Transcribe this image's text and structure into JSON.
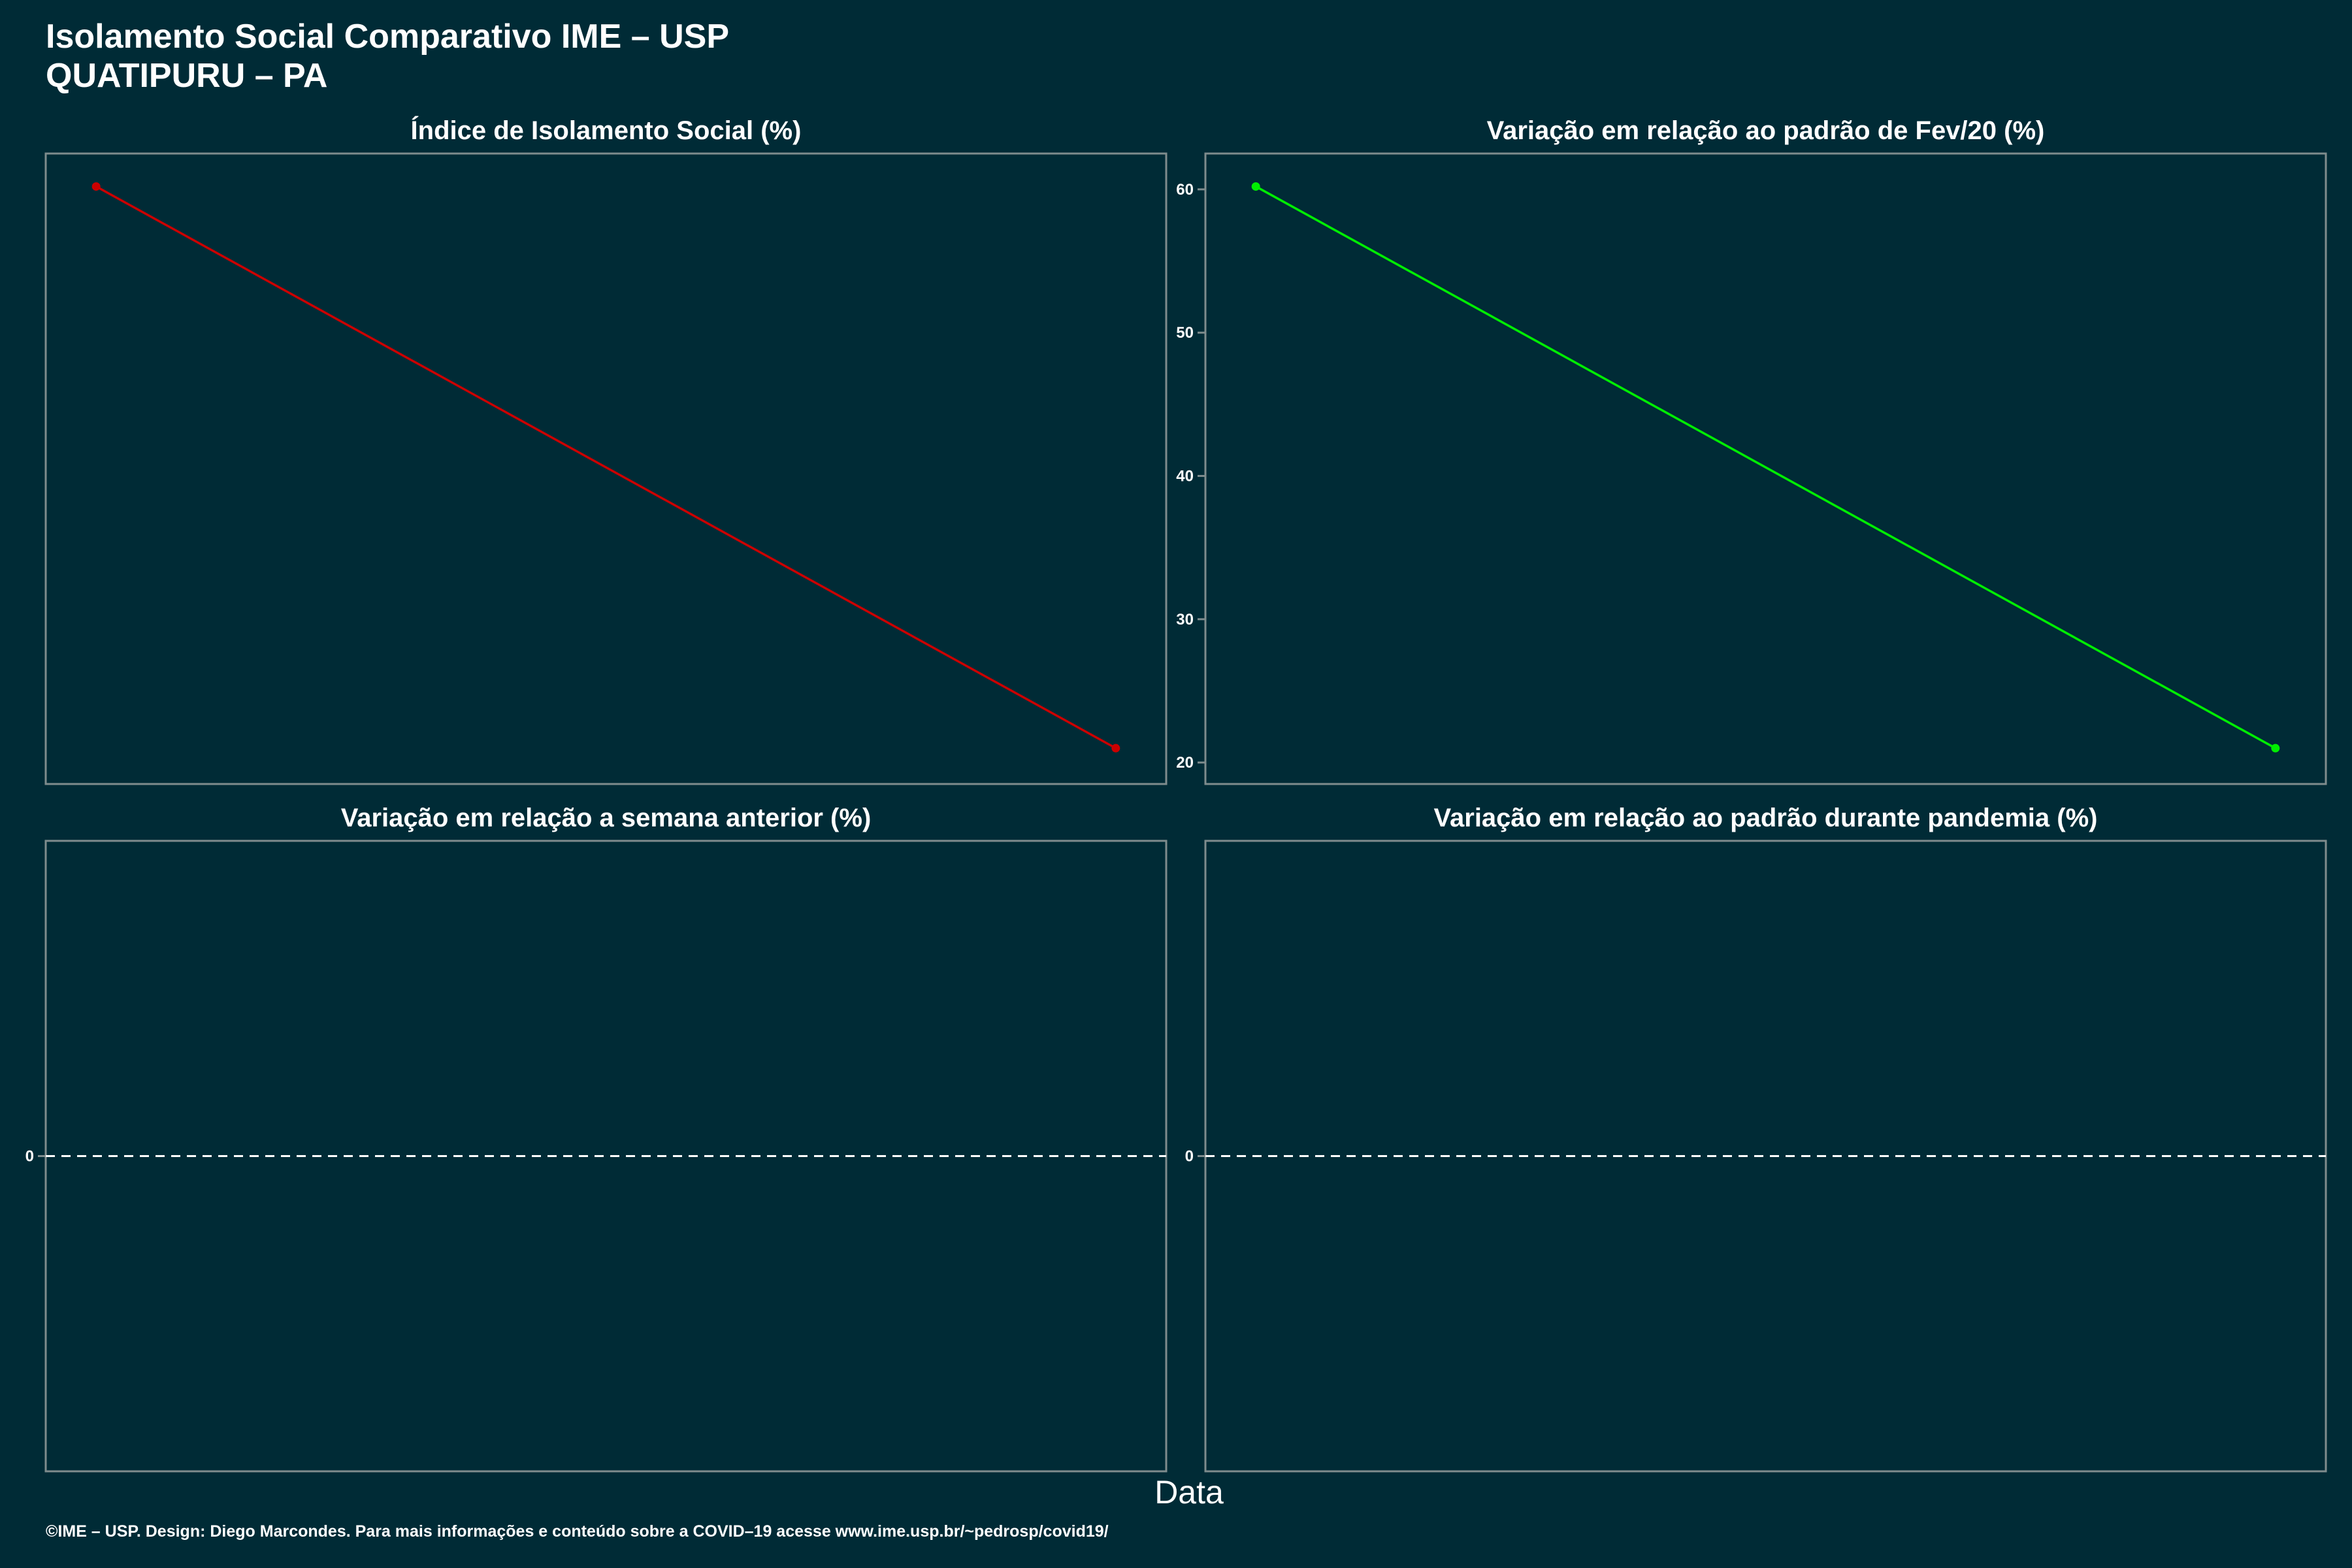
{
  "header": {
    "title_line1": "Isolamento Social Comparativo IME – USP",
    "title_line2": "QUATIPURU – PA"
  },
  "x_axis_label": "Data",
  "footer": "©IME – USP. Design: Diego Marcondes. Para mais informações e conteúdo sobre a COVID–19 acesse www.ime.usp.br/~pedrosp/covid19/",
  "colors": {
    "background": "#002b36",
    "panel_border": "#7f8c8d",
    "series_isolation": "#cc0000",
    "series_feb_variation": "#00ee00",
    "zero_line": "#ffffff"
  },
  "chart_data": [
    {
      "type": "line",
      "title": "Índice de Isolamento Social (%)",
      "x": [
        1,
        2
      ],
      "series": [
        {
          "values": [
            60.2,
            21.0
          ]
        }
      ],
      "yticks_visible": false,
      "ylim": [
        18.5,
        62.5
      ]
    },
    {
      "type": "line",
      "title": "Variação em relação ao padrão de Fev/20 (%)",
      "x": [
        1,
        2
      ],
      "series": [
        {
          "values": [
            60.2,
            21.0
          ]
        }
      ],
      "yticks": [
        20,
        30,
        40,
        50,
        60
      ],
      "ylim": [
        18.5,
        62.5
      ]
    },
    {
      "type": "line",
      "title": "Variação em relação a semana anterior (%)",
      "x": [],
      "series": [],
      "yticks": [
        0
      ],
      "reference_line": 0,
      "ylim": [
        -1,
        1
      ]
    },
    {
      "type": "line",
      "title": "Variação em relação ao padrão durante pandemia (%)",
      "x": [],
      "series": [],
      "yticks": [
        0
      ],
      "reference_line": 0,
      "ylim": [
        -1,
        1
      ]
    }
  ]
}
